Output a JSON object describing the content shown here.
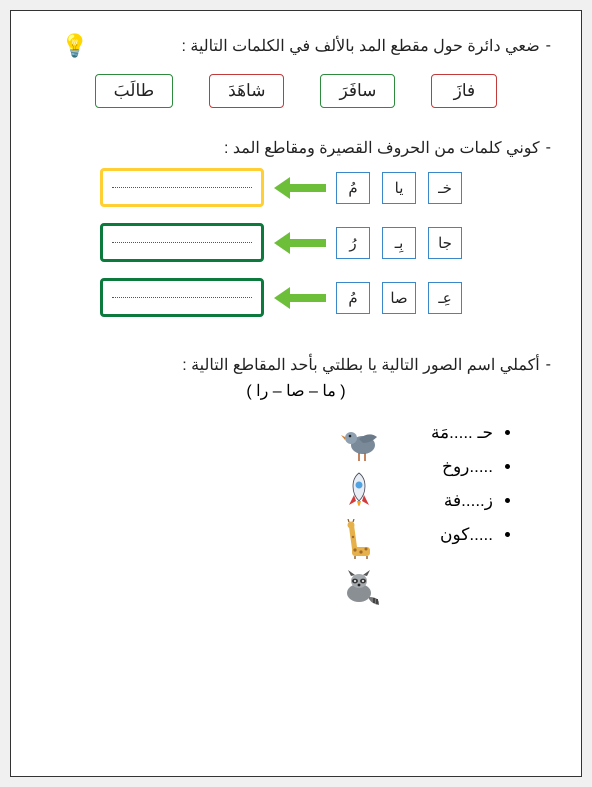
{
  "task1": {
    "prompt": "ضعي دائرة حول مقطع المد بالألف في الكلمات التالية :",
    "words": [
      {
        "text": "فازَ",
        "border": "#c23a3a"
      },
      {
        "text": "سافَرَ",
        "border": "#2e8a3c"
      },
      {
        "text": "شاهَدَ",
        "border": "#c23a3a"
      },
      {
        "text": "طالَبَ",
        "border": "#2e8a3c"
      }
    ]
  },
  "task2": {
    "prompt": "كوني كلمات من الحروف القصيرة ومقاطع المد :",
    "rows": [
      {
        "letters": [
          "خـ",
          "يا",
          "مُ"
        ],
        "arrow_color": "#6dbf3a",
        "box_border": "#ffcf33"
      },
      {
        "letters": [
          "جا",
          "بِـ",
          "رُ"
        ],
        "arrow_color": "#6dbf3a",
        "box_border": "#0b7a3c"
      },
      {
        "letters": [
          "عِـ",
          "صا",
          "مُ"
        ],
        "arrow_color": "#6dbf3a",
        "box_border": "#0b7a3c"
      }
    ]
  },
  "task3": {
    "prompt": "أكملي اسم الصور التالية يا بطلتي بأحد المقاطع التالية :",
    "options": "(  ما – صا – را  )",
    "items": [
      {
        "text": "حـ .....مَة",
        "icon": "pigeon"
      },
      {
        "text": ".....روخ",
        "icon": "rocket"
      },
      {
        "text": "ز.....فة",
        "icon": "giraffe"
      },
      {
        "text": ".....كون",
        "icon": "raccoon"
      }
    ]
  },
  "bulb": "💡"
}
